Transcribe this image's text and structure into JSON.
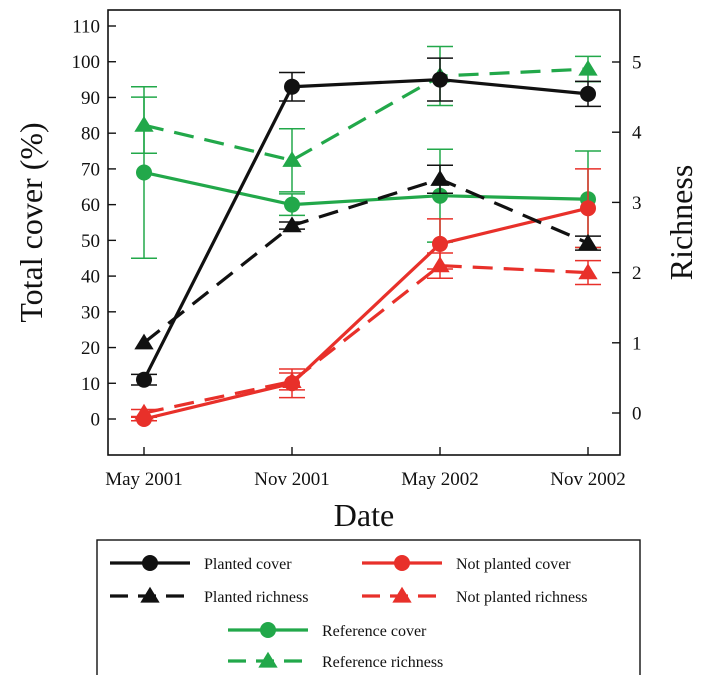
{
  "chart_data": {
    "type": "line",
    "title": "",
    "xlabel": "Date",
    "ylabel": "Total cover (%)",
    "y2label": "Richness",
    "categories": [
      "May 2001",
      "Nov 2001",
      "May 2002",
      "Nov 2002"
    ],
    "ylim": [
      0,
      110
    ],
    "yticks": [
      0,
      10,
      20,
      30,
      40,
      50,
      60,
      70,
      80,
      90,
      100,
      110
    ],
    "y2lim": [
      0,
      5
    ],
    "y2ticks": [
      0,
      1,
      2,
      3,
      4,
      5
    ],
    "grid": false,
    "legend_position": "bottom",
    "series": [
      {
        "name": "Planted cover",
        "axis": "left",
        "marker": "circle",
        "dash": "solid",
        "color": "#111111",
        "values": [
          11,
          93,
          95,
          91
        ],
        "err": [
          1.5,
          4,
          6,
          3.5
        ]
      },
      {
        "name": "Planted richness",
        "axis": "right",
        "marker": "triangle",
        "dash": "dashed",
        "color": "#111111",
        "values": [
          1.0,
          2.67,
          3.33,
          2.42
        ],
        "err": [
          0,
          0.05,
          0.2,
          0.1
        ]
      },
      {
        "name": "Not planted cover",
        "axis": "left",
        "marker": "circle",
        "dash": "solid",
        "color": "#e8302a",
        "values": [
          0,
          10,
          49,
          59
        ],
        "err": [
          0.5,
          4,
          7,
          11
        ]
      },
      {
        "name": "Not planted richness",
        "axis": "right",
        "marker": "triangle",
        "dash": "dashed",
        "color": "#e8302a",
        "values": [
          0.0,
          0.45,
          2.1,
          2.0
        ],
        "err": [
          0.05,
          0.12,
          0.18,
          0.17
        ]
      },
      {
        "name": "Reference cover",
        "axis": "left",
        "marker": "circle",
        "dash": "solid",
        "color": "#22a84a",
        "values": [
          69,
          60,
          62.5,
          61.5
        ],
        "err": [
          24,
          3,
          13,
          13.5
        ]
      },
      {
        "name": "Reference richness",
        "axis": "right",
        "marker": "triangle",
        "dash": "dashed",
        "color": "#22a84a",
        "values": [
          4.1,
          3.6,
          4.8,
          4.9
        ],
        "err": [
          0.4,
          0.45,
          0.42,
          0.18
        ]
      }
    ]
  }
}
